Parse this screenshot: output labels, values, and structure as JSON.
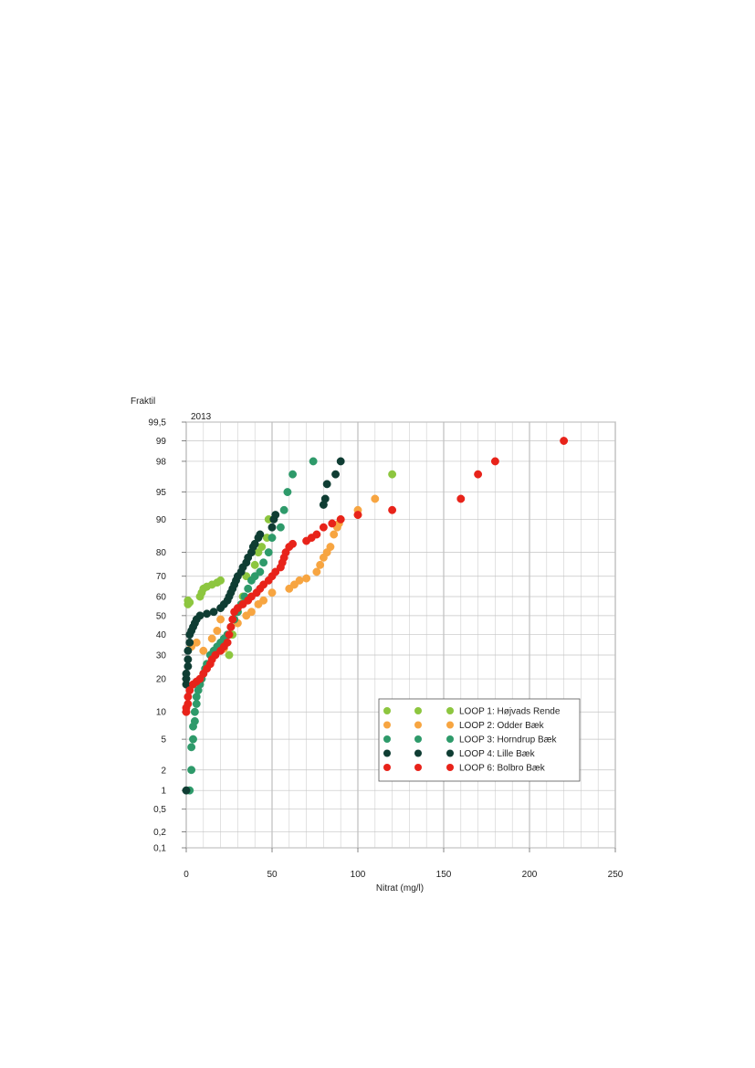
{
  "chart_data": {
    "type": "scatter",
    "title": "2013",
    "ylabel": "Fraktil",
    "xlabel": "Nitrat (mg/l)",
    "xlim": [
      0,
      250
    ],
    "x_ticks": [
      0,
      50,
      100,
      150,
      200,
      250
    ],
    "y_scale": "normal-probability",
    "y_ticks": [
      0.1,
      0.2,
      0.5,
      1,
      2,
      5,
      10,
      20,
      30,
      40,
      50,
      60,
      70,
      80,
      90,
      95,
      98,
      99,
      99.5
    ],
    "y_tick_labels": [
      "0,1",
      "0,2",
      "0,5",
      "1",
      "2",
      "5",
      "10",
      "20",
      "30",
      "40",
      "50",
      "60",
      "70",
      "80",
      "90",
      "95",
      "98",
      "99",
      "99,5"
    ],
    "grid": true,
    "legend_position": "lower-right",
    "series": [
      {
        "name": "LOOP 1: Højvads Rende",
        "color": "#8dc63f",
        "points": [
          [
            1,
            56
          ],
          [
            1,
            58
          ],
          [
            2,
            57
          ],
          [
            8,
            60
          ],
          [
            9,
            62
          ],
          [
            10,
            64
          ],
          [
            12,
            65
          ],
          [
            15,
            66
          ],
          [
            18,
            67
          ],
          [
            20,
            68
          ],
          [
            25,
            30
          ],
          [
            27,
            40
          ],
          [
            30,
            52
          ],
          [
            33,
            60
          ],
          [
            35,
            70
          ],
          [
            40,
            75
          ],
          [
            42,
            80
          ],
          [
            44,
            82
          ],
          [
            47,
            85
          ],
          [
            48,
            90
          ],
          [
            120,
            97
          ]
        ]
      },
      {
        "name": "LOOP 2: Odder Bæk",
        "color": "#f7a541",
        "points": [
          [
            3,
            34
          ],
          [
            6,
            36
          ],
          [
            10,
            32
          ],
          [
            15,
            38
          ],
          [
            18,
            42
          ],
          [
            20,
            48
          ],
          [
            22,
            33
          ],
          [
            26,
            44
          ],
          [
            30,
            46
          ],
          [
            35,
            50
          ],
          [
            38,
            52
          ],
          [
            42,
            56
          ],
          [
            45,
            58
          ],
          [
            50,
            62
          ],
          [
            60,
            64
          ],
          [
            63,
            66
          ],
          [
            66,
            68
          ],
          [
            70,
            69
          ],
          [
            76,
            72
          ],
          [
            78,
            75
          ],
          [
            80,
            78
          ],
          [
            82,
            80
          ],
          [
            84,
            82
          ],
          [
            86,
            86
          ],
          [
            88,
            88
          ],
          [
            89,
            89
          ],
          [
            90,
            90
          ],
          [
            100,
            91
          ],
          [
            100,
            92
          ],
          [
            110,
            94
          ]
        ]
      },
      {
        "name": "LOOP 3: Horndrup Bæk",
        "color": "#2e9a6a",
        "points": [
          [
            2,
            1
          ],
          [
            3,
            2
          ],
          [
            3,
            4
          ],
          [
            4,
            5
          ],
          [
            4,
            7
          ],
          [
            5,
            8
          ],
          [
            5,
            10
          ],
          [
            6,
            12
          ],
          [
            6,
            14
          ],
          [
            7,
            16
          ],
          [
            8,
            18
          ],
          [
            9,
            20
          ],
          [
            10,
            22
          ],
          [
            11,
            24
          ],
          [
            12,
            26
          ],
          [
            14,
            30
          ],
          [
            16,
            32
          ],
          [
            18,
            34
          ],
          [
            20,
            36
          ],
          [
            22,
            38
          ],
          [
            24,
            40
          ],
          [
            26,
            44
          ],
          [
            28,
            48
          ],
          [
            30,
            52
          ],
          [
            32,
            56
          ],
          [
            34,
            60
          ],
          [
            36,
            64
          ],
          [
            38,
            68
          ],
          [
            40,
            70
          ],
          [
            43,
            72
          ],
          [
            45,
            76
          ],
          [
            48,
            80
          ],
          [
            50,
            85
          ],
          [
            55,
            88
          ],
          [
            57,
            92
          ],
          [
            59,
            95
          ],
          [
            62,
            97
          ],
          [
            74,
            98
          ]
        ]
      },
      {
        "name": "LOOP 4: Lille Bæk",
        "color": "#0f3d33",
        "points": [
          [
            0,
            1
          ],
          [
            0,
            18
          ],
          [
            0,
            20
          ],
          [
            0,
            22
          ],
          [
            1,
            25
          ],
          [
            1,
            28
          ],
          [
            1,
            32
          ],
          [
            2,
            36
          ],
          [
            2,
            40
          ],
          [
            3,
            42
          ],
          [
            4,
            44
          ],
          [
            5,
            46
          ],
          [
            6,
            48
          ],
          [
            8,
            50
          ],
          [
            12,
            51
          ],
          [
            16,
            52
          ],
          [
            20,
            54
          ],
          [
            22,
            56
          ],
          [
            24,
            58
          ],
          [
            25,
            60
          ],
          [
            26,
            62
          ],
          [
            27,
            64
          ],
          [
            28,
            66
          ],
          [
            29,
            68
          ],
          [
            30,
            70
          ],
          [
            32,
            72
          ],
          [
            33,
            74
          ],
          [
            35,
            76
          ],
          [
            36,
            78
          ],
          [
            38,
            80
          ],
          [
            39,
            82
          ],
          [
            40,
            83
          ],
          [
            42,
            85
          ],
          [
            43,
            86
          ],
          [
            50,
            88
          ],
          [
            51,
            90
          ],
          [
            52,
            91
          ],
          [
            80,
            93
          ],
          [
            81,
            94
          ],
          [
            82,
            96
          ],
          [
            87,
            97
          ],
          [
            90,
            98
          ]
        ]
      },
      {
        "name": "LOOP 6: Bolbro Bæk",
        "color": "#e8231a",
        "points": [
          [
            0,
            10
          ],
          [
            0,
            11
          ],
          [
            1,
            12
          ],
          [
            1,
            14
          ],
          [
            2,
            16
          ],
          [
            4,
            18
          ],
          [
            6,
            19
          ],
          [
            8,
            20
          ],
          [
            10,
            22
          ],
          [
            12,
            24
          ],
          [
            14,
            26
          ],
          [
            15,
            28
          ],
          [
            17,
            30
          ],
          [
            20,
            32
          ],
          [
            22,
            34
          ],
          [
            24,
            36
          ],
          [
            25,
            40
          ],
          [
            26,
            44
          ],
          [
            27,
            48
          ],
          [
            28,
            52
          ],
          [
            30,
            54
          ],
          [
            33,
            56
          ],
          [
            36,
            58
          ],
          [
            38,
            60
          ],
          [
            41,
            62
          ],
          [
            43,
            64
          ],
          [
            45,
            66
          ],
          [
            48,
            68
          ],
          [
            50,
            70
          ],
          [
            52,
            72
          ],
          [
            55,
            74
          ],
          [
            56,
            76
          ],
          [
            57,
            78
          ],
          [
            58,
            80
          ],
          [
            60,
            82
          ],
          [
            62,
            83
          ],
          [
            70,
            84
          ],
          [
            73,
            85
          ],
          [
            76,
            86
          ],
          [
            80,
            88
          ],
          [
            85,
            89
          ],
          [
            90,
            90
          ],
          [
            100,
            91
          ],
          [
            120,
            92
          ],
          [
            160,
            94
          ],
          [
            170,
            97
          ],
          [
            180,
            98
          ],
          [
            220,
            99
          ]
        ]
      }
    ]
  }
}
